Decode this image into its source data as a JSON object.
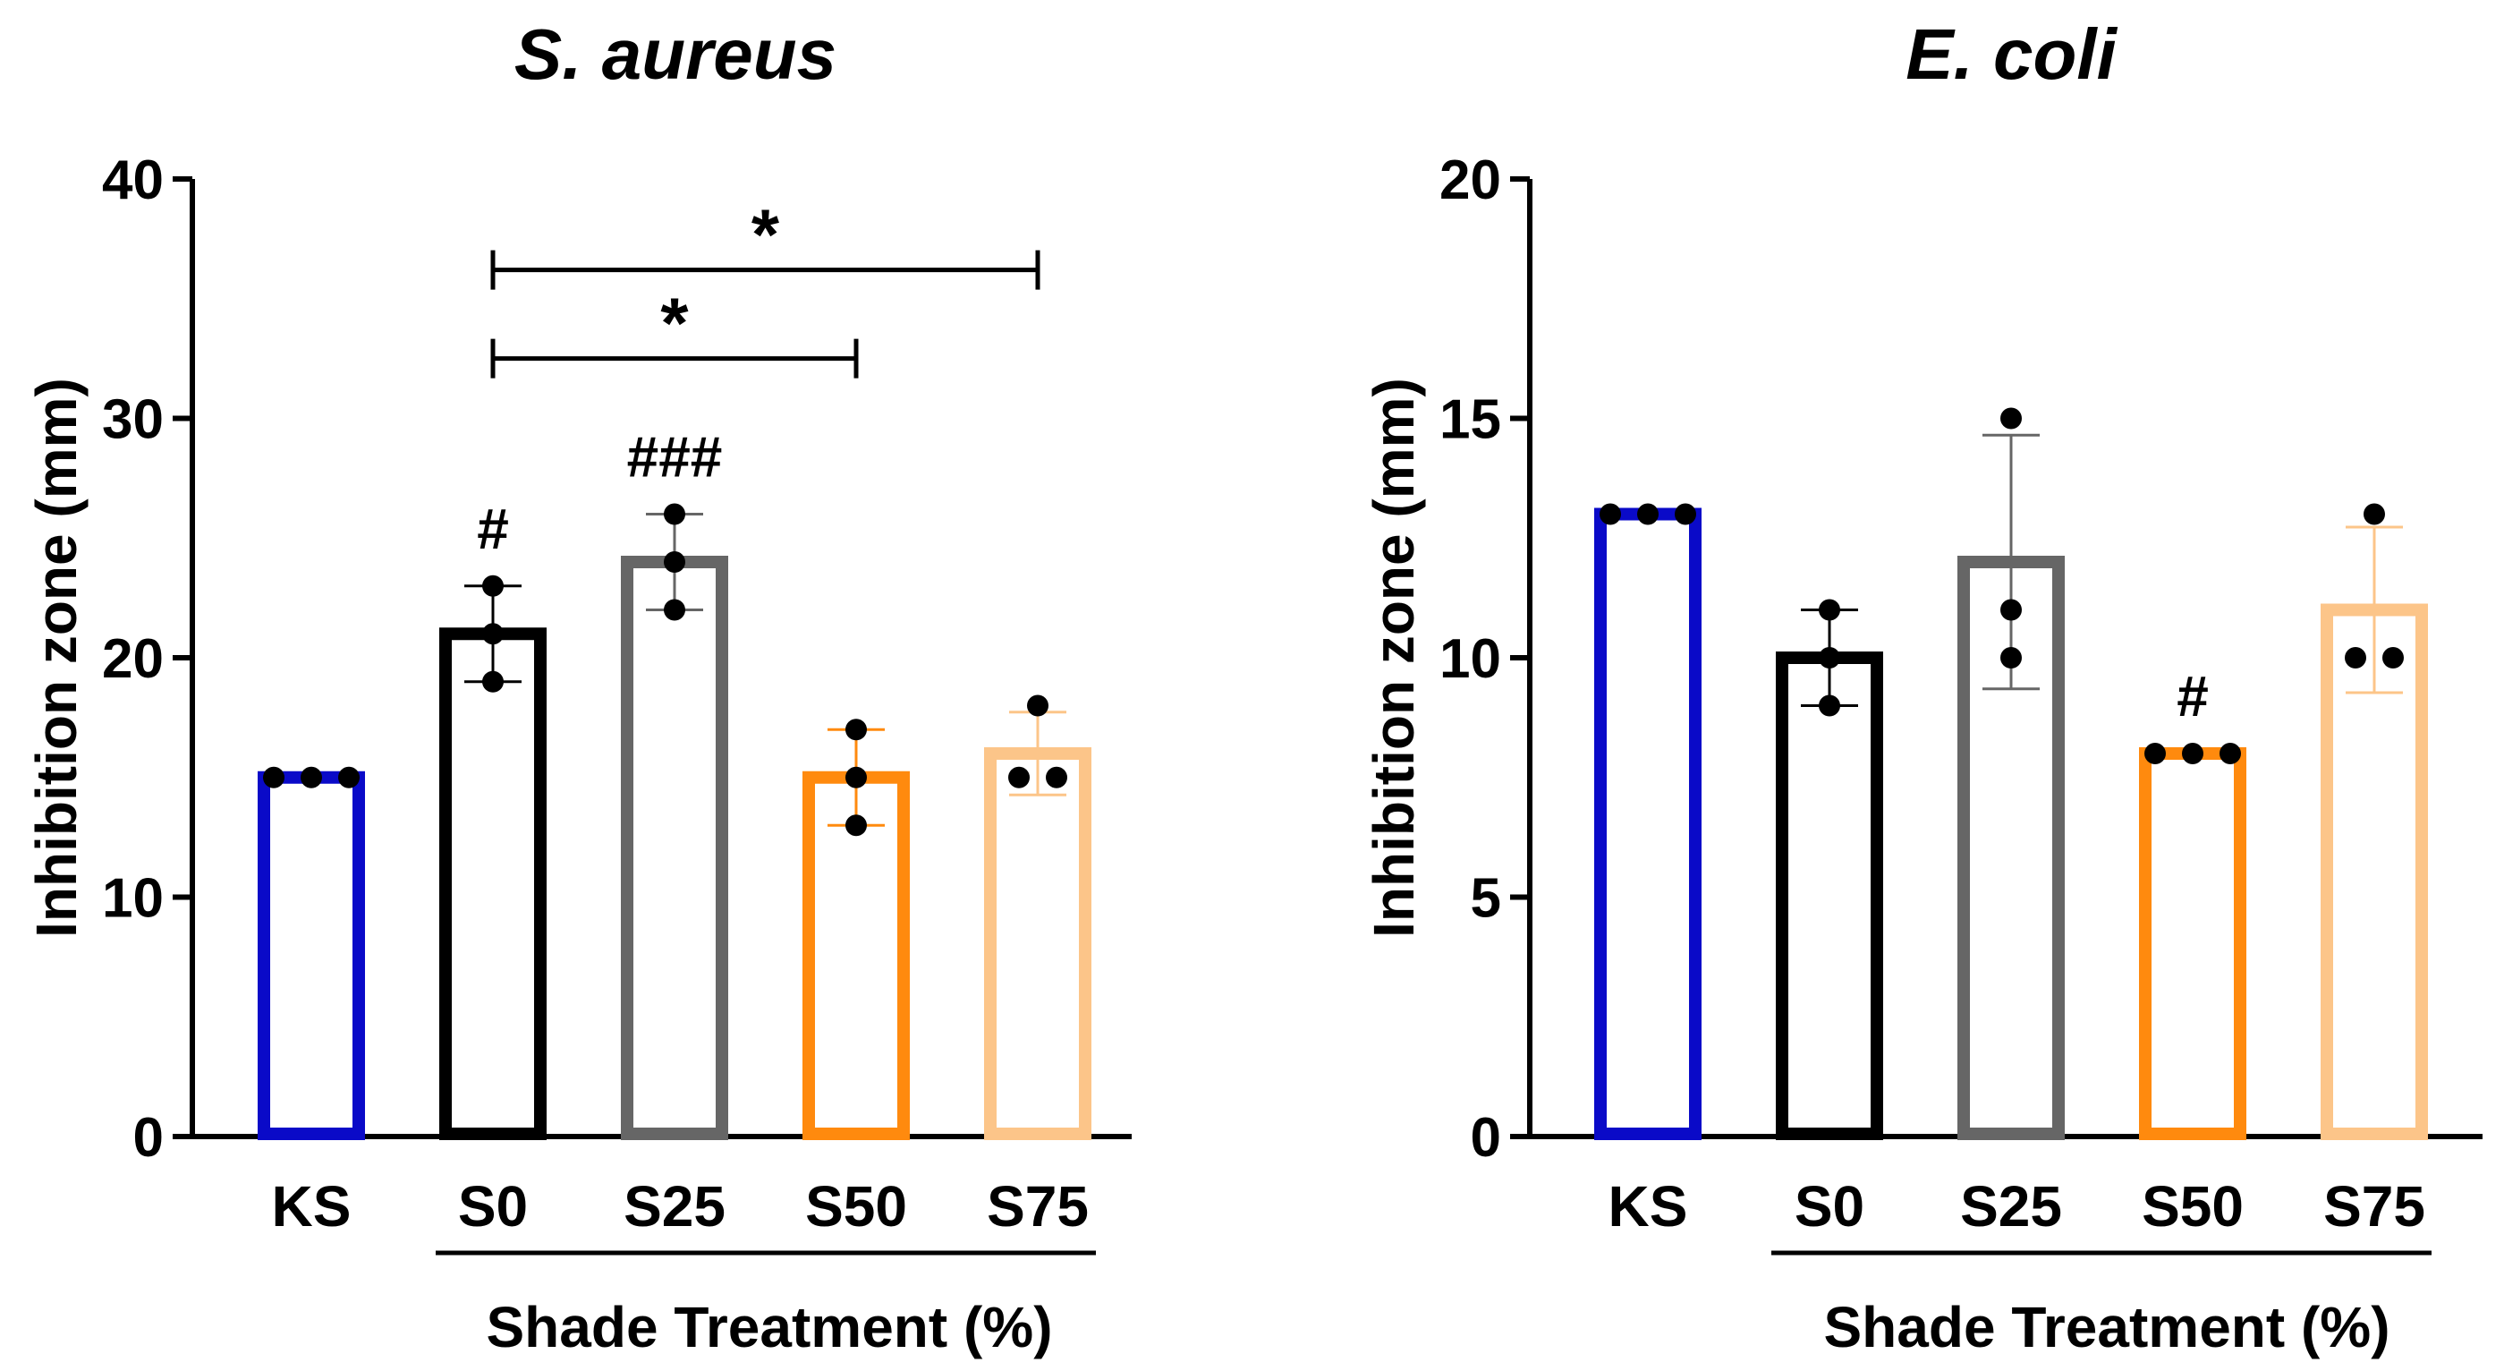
{
  "chart_data": [
    {
      "type": "bar",
      "title": "S.  aureus",
      "ylabel": "Inhibition zone (mm)",
      "xlabel": "Shade Treatment (%)",
      "ylim": [
        0,
        40
      ],
      "yticks": [
        0,
        10,
        20,
        30,
        40
      ],
      "categories": [
        "KS",
        "S0",
        "S25",
        "S50",
        "S75"
      ],
      "colors": [
        "#0a0ac8",
        "#000000",
        "#666666",
        "#ff8a0e",
        "#fcc589"
      ],
      "values": [
        15,
        21,
        24,
        15,
        16
      ],
      "sd": [
        0,
        2,
        2,
        2,
        1.73
      ],
      "points": [
        [
          15,
          15,
          15
        ],
        [
          23,
          21,
          19
        ],
        [
          26,
          24,
          22
        ],
        [
          17,
          15,
          13
        ],
        [
          18,
          15,
          15
        ]
      ],
      "marks": [
        "",
        "#",
        "###",
        "",
        ""
      ],
      "brackets": [
        {
          "from": "S0",
          "to": "S50",
          "y": 32.5,
          "label": "*"
        },
        {
          "from": "S0",
          "to": "S75",
          "y": 36.2,
          "label": "*"
        }
      ]
    },
    {
      "type": "bar",
      "title": "E. coli",
      "ylabel": "Inhibition zone (mm)",
      "xlabel": "Shade Treatment (%)",
      "ylim": [
        0,
        20
      ],
      "yticks": [
        0,
        5,
        10,
        15,
        20
      ],
      "categories": [
        "KS",
        "S0",
        "S25",
        "S50",
        "S75"
      ],
      "colors": [
        "#0a0ac8",
        "#000000",
        "#666666",
        "#ff8a0e",
        "#fcc589"
      ],
      "values": [
        13,
        10,
        12,
        8,
        11
      ],
      "sd": [
        0,
        1,
        2.65,
        0,
        1.73
      ],
      "points": [
        [
          13,
          13,
          13
        ],
        [
          11,
          10,
          9
        ],
        [
          15,
          11,
          10
        ],
        [
          8,
          8,
          8
        ],
        [
          13,
          10,
          10
        ]
      ],
      "marks": [
        "",
        "",
        "",
        "#",
        ""
      ],
      "brackets": []
    }
  ]
}
